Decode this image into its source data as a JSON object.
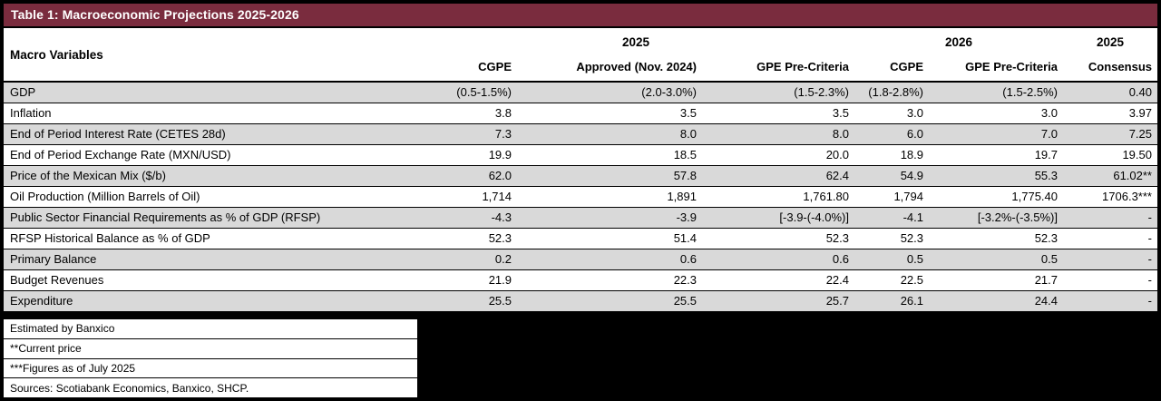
{
  "colors": {
    "title_bar": "#7a2c3e",
    "row_stripe": "#d9d9d9",
    "page_background": "#000000"
  },
  "chart_data": {
    "type": "table",
    "title": "Table 1: Macroeconomic Projections 2025-2026",
    "header": {
      "macro": "Macro Variables",
      "group_2025": "2025",
      "group_2026": "2026",
      "group_2025_consensus": "2025",
      "cols": [
        "CGPE",
        "Approved (Nov. 2024)",
        "GPE Pre-Criteria",
        "CGPE",
        "GPE Pre-Criteria",
        "Consensus"
      ]
    },
    "rows": [
      {
        "label": "GDP",
        "values": [
          "(0.5-1.5%)",
          "(2.0-3.0%)",
          "(1.5-2.3%)",
          "(1.8-2.8%)",
          "(1.5-2.5%)",
          "0.40"
        ]
      },
      {
        "label": "Inflation",
        "values": [
          "3.8",
          "3.5",
          "3.5",
          "3.0",
          "3.0",
          "3.97"
        ]
      },
      {
        "label": "End of Period Interest Rate (CETES 28d)",
        "values": [
          "7.3",
          "8.0",
          "8.0",
          "6.0",
          "7.0",
          "7.25"
        ]
      },
      {
        "label": "End of Period Exchange Rate (MXN/USD)",
        "values": [
          "19.9",
          "18.5",
          "20.0",
          "18.9",
          "19.7",
          "19.50"
        ]
      },
      {
        "label": "Price of the Mexican Mix ($/b)",
        "values": [
          "62.0",
          "57.8",
          "62.4",
          "54.9",
          "55.3",
          "61.02**"
        ]
      },
      {
        "label": "Oil Production (Million Barrels of Oil)",
        "values": [
          "1,714",
          "1,891",
          "1,761.80",
          "1,794",
          "1,775.40",
          "1706.3***"
        ]
      },
      {
        "label": "Public Sector Financial Requirements as % of GDP (RFSP)",
        "values": [
          "-4.3",
          "-3.9",
          "[-3.9-(-4.0%)]",
          "-4.1",
          "[-3.2%-(-3.5%)]",
          "-"
        ]
      },
      {
        "label": "RFSP Historical Balance as % of GDP",
        "values": [
          "52.3",
          "51.4",
          "52.3",
          "52.3",
          "52.3",
          "-"
        ]
      },
      {
        "label": "Primary Balance",
        "values": [
          "0.2",
          "0.6",
          "0.6",
          "0.5",
          "0.5",
          "-"
        ]
      },
      {
        "label": "Budget Revenues",
        "values": [
          "21.9",
          "22.3",
          "22.4",
          "22.5",
          "21.7",
          "-"
        ]
      },
      {
        "label": "Expenditure",
        "values": [
          "25.5",
          "25.5",
          "25.7",
          "26.1",
          "24.4",
          "-"
        ]
      }
    ],
    "footnotes": [
      "Estimated by Banxico",
      "**Current price",
      "***Figures as of July 2025",
      "Sources: Scotiabank Economics, Banxico, SHCP."
    ]
  }
}
